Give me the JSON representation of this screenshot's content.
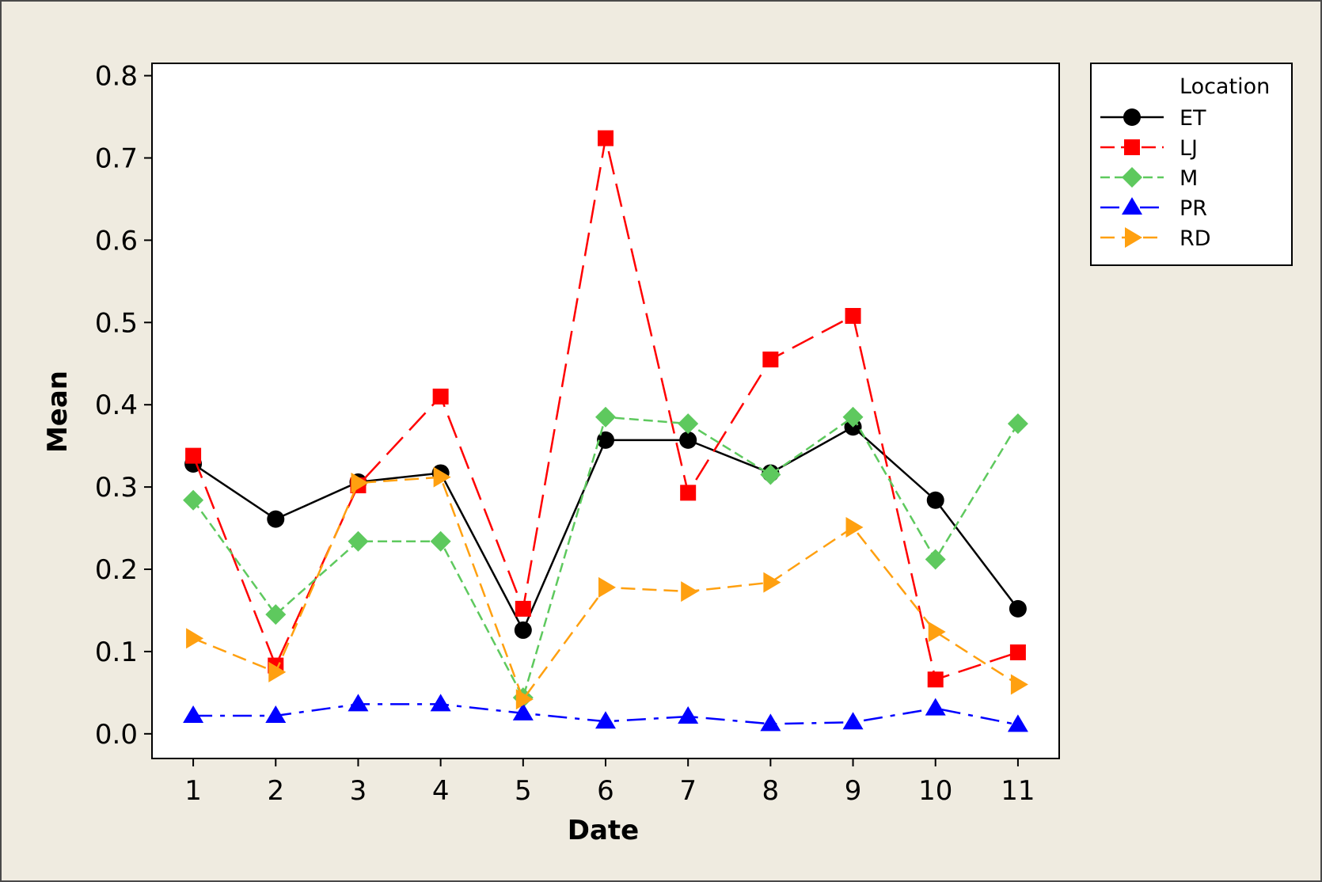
{
  "chart_data": {
    "type": "line",
    "title": "",
    "xlabel": "Date",
    "ylabel": "Mean",
    "x": [
      1,
      2,
      3,
      4,
      5,
      6,
      7,
      8,
      9,
      10,
      11
    ],
    "x_tick_labels": [
      "1",
      "2",
      "3",
      "4",
      "5",
      "6",
      "7",
      "8",
      "9",
      "10",
      "11"
    ],
    "xlim": [
      0.5,
      11.5
    ],
    "ylim": [
      -0.03,
      0.815
    ],
    "y_ticks": [
      0.0,
      0.1,
      0.2,
      0.3,
      0.4,
      0.5,
      0.6,
      0.7,
      0.8
    ],
    "y_tick_labels": [
      "0.0",
      "0.1",
      "0.2",
      "0.3",
      "0.4",
      "0.5",
      "0.6",
      "0.7",
      "0.8"
    ],
    "grid": false,
    "legend_position": "right",
    "legend_title": "Location",
    "series": [
      {
        "name": "ET",
        "color": "#000000",
        "marker": "circle",
        "dash": "solid",
        "values": [
          0.328,
          0.261,
          0.306,
          0.317,
          0.126,
          0.357,
          0.357,
          0.317,
          0.373,
          0.284,
          0.152
        ]
      },
      {
        "name": "LJ",
        "color": "#ff0000",
        "marker": "square",
        "dash": "long-dash",
        "values": [
          0.338,
          0.083,
          0.302,
          0.41,
          0.152,
          0.724,
          0.293,
          0.455,
          0.508,
          0.066,
          0.099
        ]
      },
      {
        "name": "M",
        "color": "#5ec95e",
        "marker": "diamond",
        "dash": "short-dash",
        "values": [
          0.284,
          0.145,
          0.234,
          0.234,
          0.044,
          0.385,
          0.377,
          0.315,
          0.385,
          0.212,
          0.377
        ]
      },
      {
        "name": "PR",
        "color": "#0000ff",
        "marker": "triangle-up",
        "dash": "dash-dot",
        "values": [
          0.022,
          0.022,
          0.036,
          0.036,
          0.025,
          0.015,
          0.021,
          0.012,
          0.014,
          0.031,
          0.011
        ]
      },
      {
        "name": "RD",
        "color": "#ffa010",
        "marker": "triangle-right",
        "dash": "medium-dash",
        "values": [
          0.116,
          0.075,
          0.305,
          0.312,
          0.042,
          0.178,
          0.173,
          0.184,
          0.251,
          0.124,
          0.06
        ]
      }
    ]
  }
}
